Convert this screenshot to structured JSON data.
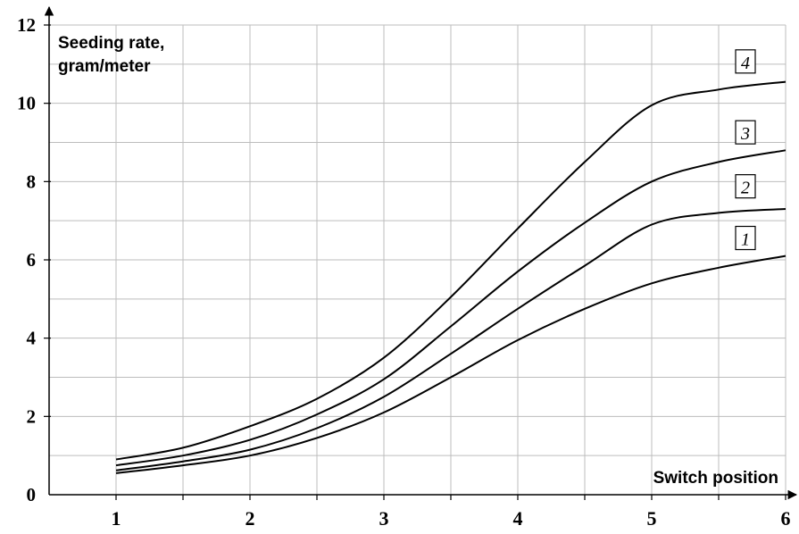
{
  "chart_data": {
    "type": "line",
    "title": "",
    "ylabel": [
      "Seeding rate,",
      "gram/meter"
    ],
    "xlabel": "Switch position",
    "xlim": [
      0.5,
      6
    ],
    "ylim": [
      0,
      12
    ],
    "x_ticks": [
      1,
      2,
      3,
      4,
      5,
      6
    ],
    "y_ticks": [
      0,
      2,
      4,
      6,
      8,
      10,
      12
    ],
    "x_gridlines": [
      0.5,
      1,
      1.5,
      2,
      2.5,
      3,
      3.5,
      4,
      4.5,
      5,
      5.5,
      6
    ],
    "grid": true,
    "series": [
      {
        "name": "1",
        "x": [
          1,
          1.5,
          2,
          2.5,
          3,
          3.5,
          4,
          4.5,
          5,
          5.5,
          6
        ],
        "y": [
          0.55,
          0.75,
          1.0,
          1.45,
          2.1,
          3.0,
          3.95,
          4.75,
          5.4,
          5.8,
          6.1
        ]
      },
      {
        "name": "2",
        "x": [
          1,
          1.5,
          2,
          2.5,
          3,
          3.5,
          4,
          4.5,
          5,
          5.5,
          6
        ],
        "y": [
          0.62,
          0.85,
          1.15,
          1.7,
          2.5,
          3.6,
          4.75,
          5.85,
          6.9,
          7.2,
          7.3
        ]
      },
      {
        "name": "3",
        "x": [
          1,
          1.5,
          2,
          2.5,
          3,
          3.5,
          4,
          4.5,
          5,
          5.5,
          6
        ],
        "y": [
          0.75,
          1.0,
          1.4,
          2.05,
          2.95,
          4.3,
          5.7,
          6.95,
          8.0,
          8.5,
          8.8
        ]
      },
      {
        "name": "4",
        "x": [
          1,
          1.5,
          2,
          2.5,
          3,
          3.5,
          4,
          4.5,
          5,
          5.5,
          6
        ],
        "y": [
          0.9,
          1.2,
          1.75,
          2.45,
          3.5,
          5.05,
          6.8,
          8.5,
          9.95,
          10.35,
          10.55
        ]
      }
    ]
  }
}
